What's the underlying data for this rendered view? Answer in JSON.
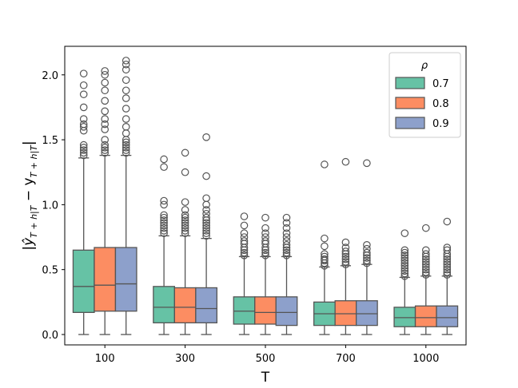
{
  "chart_data": {
    "type": "box",
    "title": "",
    "xlabel": "T",
    "ylabel_parts": {
      "pipe_open": "|",
      "yhat": "ŷ",
      "sub1": "T + h|T",
      "minus": " − y",
      "sub2": "T + h|T",
      "pipe_close": "|"
    },
    "categories": [
      "100",
      "300",
      "500",
      "700",
      "1000"
    ],
    "ylim": [
      -0.08,
      2.22
    ],
    "yticks": [
      0.0,
      0.5,
      1.0,
      1.5,
      2.0
    ],
    "ytick_labels": [
      "0.0",
      "0.5",
      "1.0",
      "1.5",
      "2.0"
    ],
    "legend": {
      "title": "ρ",
      "position": "top-right"
    },
    "series": [
      {
        "name": "0.7",
        "color": "#66c2a5",
        "boxes": [
          {
            "whislo": 0.0,
            "q1": 0.17,
            "med": 0.37,
            "q3": 0.65,
            "whishi": 1.36,
            "fliers": [
              1.38,
              1.4,
              1.42,
              1.44,
              1.46,
              1.57,
              1.6,
              1.62,
              1.66,
              1.75,
              1.85,
              1.92,
              2.01
            ]
          },
          {
            "whislo": 0.0,
            "q1": 0.09,
            "med": 0.21,
            "q3": 0.37,
            "whishi": 0.76,
            "fliers": [
              0.78,
              0.8,
              0.82,
              0.84,
              0.86,
              0.88,
              0.9,
              0.92,
              1.0,
              1.03,
              1.29,
              1.35
            ]
          },
          {
            "whislo": 0.0,
            "q1": 0.08,
            "med": 0.18,
            "q3": 0.29,
            "whishi": 0.6,
            "fliers": [
              0.61,
              0.63,
              0.65,
              0.67,
              0.7,
              0.72,
              0.75,
              0.78,
              0.84,
              0.91
            ]
          },
          {
            "whislo": 0.0,
            "q1": 0.07,
            "med": 0.16,
            "q3": 0.25,
            "whishi": 0.52,
            "fliers": [
              0.53,
              0.55,
              0.57,
              0.58,
              0.6,
              0.62,
              0.68,
              0.74,
              1.31
            ]
          },
          {
            "whislo": 0.0,
            "q1": 0.06,
            "med": 0.13,
            "q3": 0.21,
            "whishi": 0.44,
            "fliers": [
              0.45,
              0.47,
              0.49,
              0.51,
              0.53,
              0.55,
              0.57,
              0.59,
              0.61,
              0.63,
              0.65,
              0.78
            ]
          }
        ]
      },
      {
        "name": "0.8",
        "color": "#fc8d62",
        "boxes": [
          {
            "whislo": 0.0,
            "q1": 0.18,
            "med": 0.38,
            "q3": 0.67,
            "whishi": 1.38,
            "fliers": [
              1.4,
              1.42,
              1.44,
              1.46,
              1.5,
              1.58,
              1.62,
              1.66,
              1.72,
              1.8,
              1.88,
              1.94,
              2.0,
              2.03
            ]
          },
          {
            "whislo": 0.0,
            "q1": 0.09,
            "med": 0.21,
            "q3": 0.36,
            "whishi": 0.76,
            "fliers": [
              0.78,
              0.8,
              0.82,
              0.84,
              0.86,
              0.88,
              0.9,
              0.92,
              0.96,
              1.02,
              1.25,
              1.4
            ]
          },
          {
            "whislo": 0.0,
            "q1": 0.08,
            "med": 0.17,
            "q3": 0.29,
            "whishi": 0.6,
            "fliers": [
              0.61,
              0.63,
              0.65,
              0.67,
              0.7,
              0.72,
              0.75,
              0.78,
              0.82,
              0.9
            ]
          },
          {
            "whislo": 0.0,
            "q1": 0.07,
            "med": 0.16,
            "q3": 0.26,
            "whishi": 0.53,
            "fliers": [
              0.54,
              0.56,
              0.58,
              0.6,
              0.62,
              0.64,
              0.67,
              0.71,
              1.33
            ]
          },
          {
            "whislo": 0.0,
            "q1": 0.06,
            "med": 0.13,
            "q3": 0.22,
            "whishi": 0.45,
            "fliers": [
              0.46,
              0.48,
              0.5,
              0.52,
              0.54,
              0.56,
              0.58,
              0.6,
              0.62,
              0.65,
              0.82
            ]
          }
        ]
      },
      {
        "name": "0.9",
        "color": "#8da0cb",
        "boxes": [
          {
            "whislo": 0.0,
            "q1": 0.18,
            "med": 0.39,
            "q3": 0.67,
            "whishi": 1.38,
            "fliers": [
              1.4,
              1.42,
              1.44,
              1.46,
              1.48,
              1.5,
              1.55,
              1.6,
              1.66,
              1.74,
              1.82,
              1.88,
              1.96,
              2.04,
              2.08,
              2.11
            ]
          },
          {
            "whislo": 0.0,
            "q1": 0.09,
            "med": 0.2,
            "q3": 0.36,
            "whishi": 0.74,
            "fliers": [
              0.76,
              0.78,
              0.8,
              0.82,
              0.84,
              0.86,
              0.88,
              0.9,
              0.93,
              0.96,
              1.0,
              1.05,
              1.22,
              1.52
            ]
          },
          {
            "whislo": 0.0,
            "q1": 0.07,
            "med": 0.17,
            "q3": 0.29,
            "whishi": 0.6,
            "fliers": [
              0.61,
              0.63,
              0.65,
              0.67,
              0.69,
              0.72,
              0.75,
              0.78,
              0.82,
              0.86,
              0.9
            ]
          },
          {
            "whislo": 0.0,
            "q1": 0.07,
            "med": 0.16,
            "q3": 0.26,
            "whishi": 0.54,
            "fliers": [
              0.55,
              0.57,
              0.59,
              0.61,
              0.63,
              0.66,
              0.69,
              1.32
            ]
          },
          {
            "whislo": 0.0,
            "q1": 0.06,
            "med": 0.13,
            "q3": 0.22,
            "whishi": 0.45,
            "fliers": [
              0.46,
              0.48,
              0.5,
              0.52,
              0.54,
              0.56,
              0.58,
              0.6,
              0.62,
              0.65,
              0.67,
              0.87
            ]
          }
        ]
      }
    ]
  }
}
